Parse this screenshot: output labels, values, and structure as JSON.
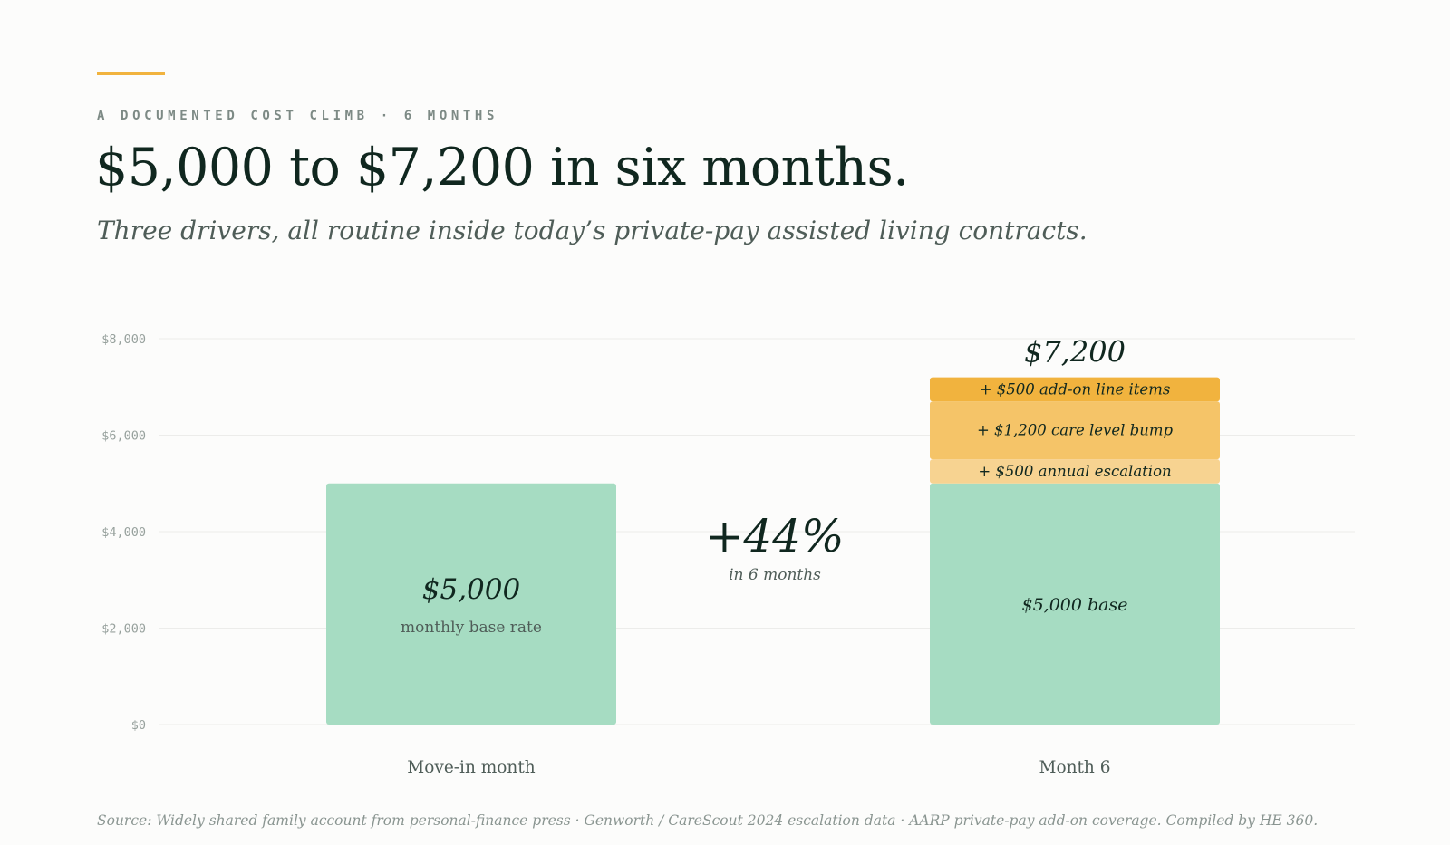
{
  "header": {
    "eyebrow": "A DOCUMENTED COST CLIMB · 6 MONTHS",
    "title": "$5,000 to $7,200 in six months.",
    "subtitle": "Three drivers, all routine inside today’s private-pay assisted living contracts."
  },
  "colors": {
    "accent": "#f1b33e",
    "base": "#a6dcc2",
    "escalation": "#f7d391",
    "care_bump": "#f5c468",
    "add_on": "#f1b33e",
    "grid": "#ececea",
    "ink": "#10271f",
    "muted": "#4f5d58"
  },
  "chart_data": {
    "type": "bar",
    "stacked": true,
    "categories": [
      "Move-in month",
      "Month 6"
    ],
    "ylim": [
      0,
      8000
    ],
    "y_ticks": [
      {
        "value": 0,
        "label": "$0"
      },
      {
        "value": 2000,
        "label": "$2,000"
      },
      {
        "value": 4000,
        "label": "$4,000"
      },
      {
        "value": 6000,
        "label": "$6,000"
      },
      {
        "value": 8000,
        "label": "$8,000"
      }
    ],
    "grid": true,
    "bars": [
      {
        "category": "Move-in month",
        "total": 5000,
        "segments": [
          {
            "value": 5000,
            "color_key": "base",
            "label": "$5,000",
            "sublabel": "monthly base rate"
          }
        ]
      },
      {
        "category": "Month 6",
        "total": 7200,
        "total_label": "$7,200",
        "segments": [
          {
            "value": 5000,
            "color_key": "base",
            "label": "$5,000 base"
          },
          {
            "value": 500,
            "color_key": "escalation",
            "label": "+ $500 annual escalation"
          },
          {
            "value": 1200,
            "color_key": "care_bump",
            "label": "+ $1,200 care level bump"
          },
          {
            "value": 500,
            "color_key": "add_on",
            "label": "+ $500 add-on line items"
          }
        ]
      }
    ],
    "annotation": {
      "value": "+44%",
      "sublabel": "in 6 months"
    }
  },
  "footer": {
    "source": "Source: Widely shared family account from personal-finance press · Genworth / CareScout 2024 escalation data · AARP private-pay add-on coverage. Compiled by HE 360."
  }
}
